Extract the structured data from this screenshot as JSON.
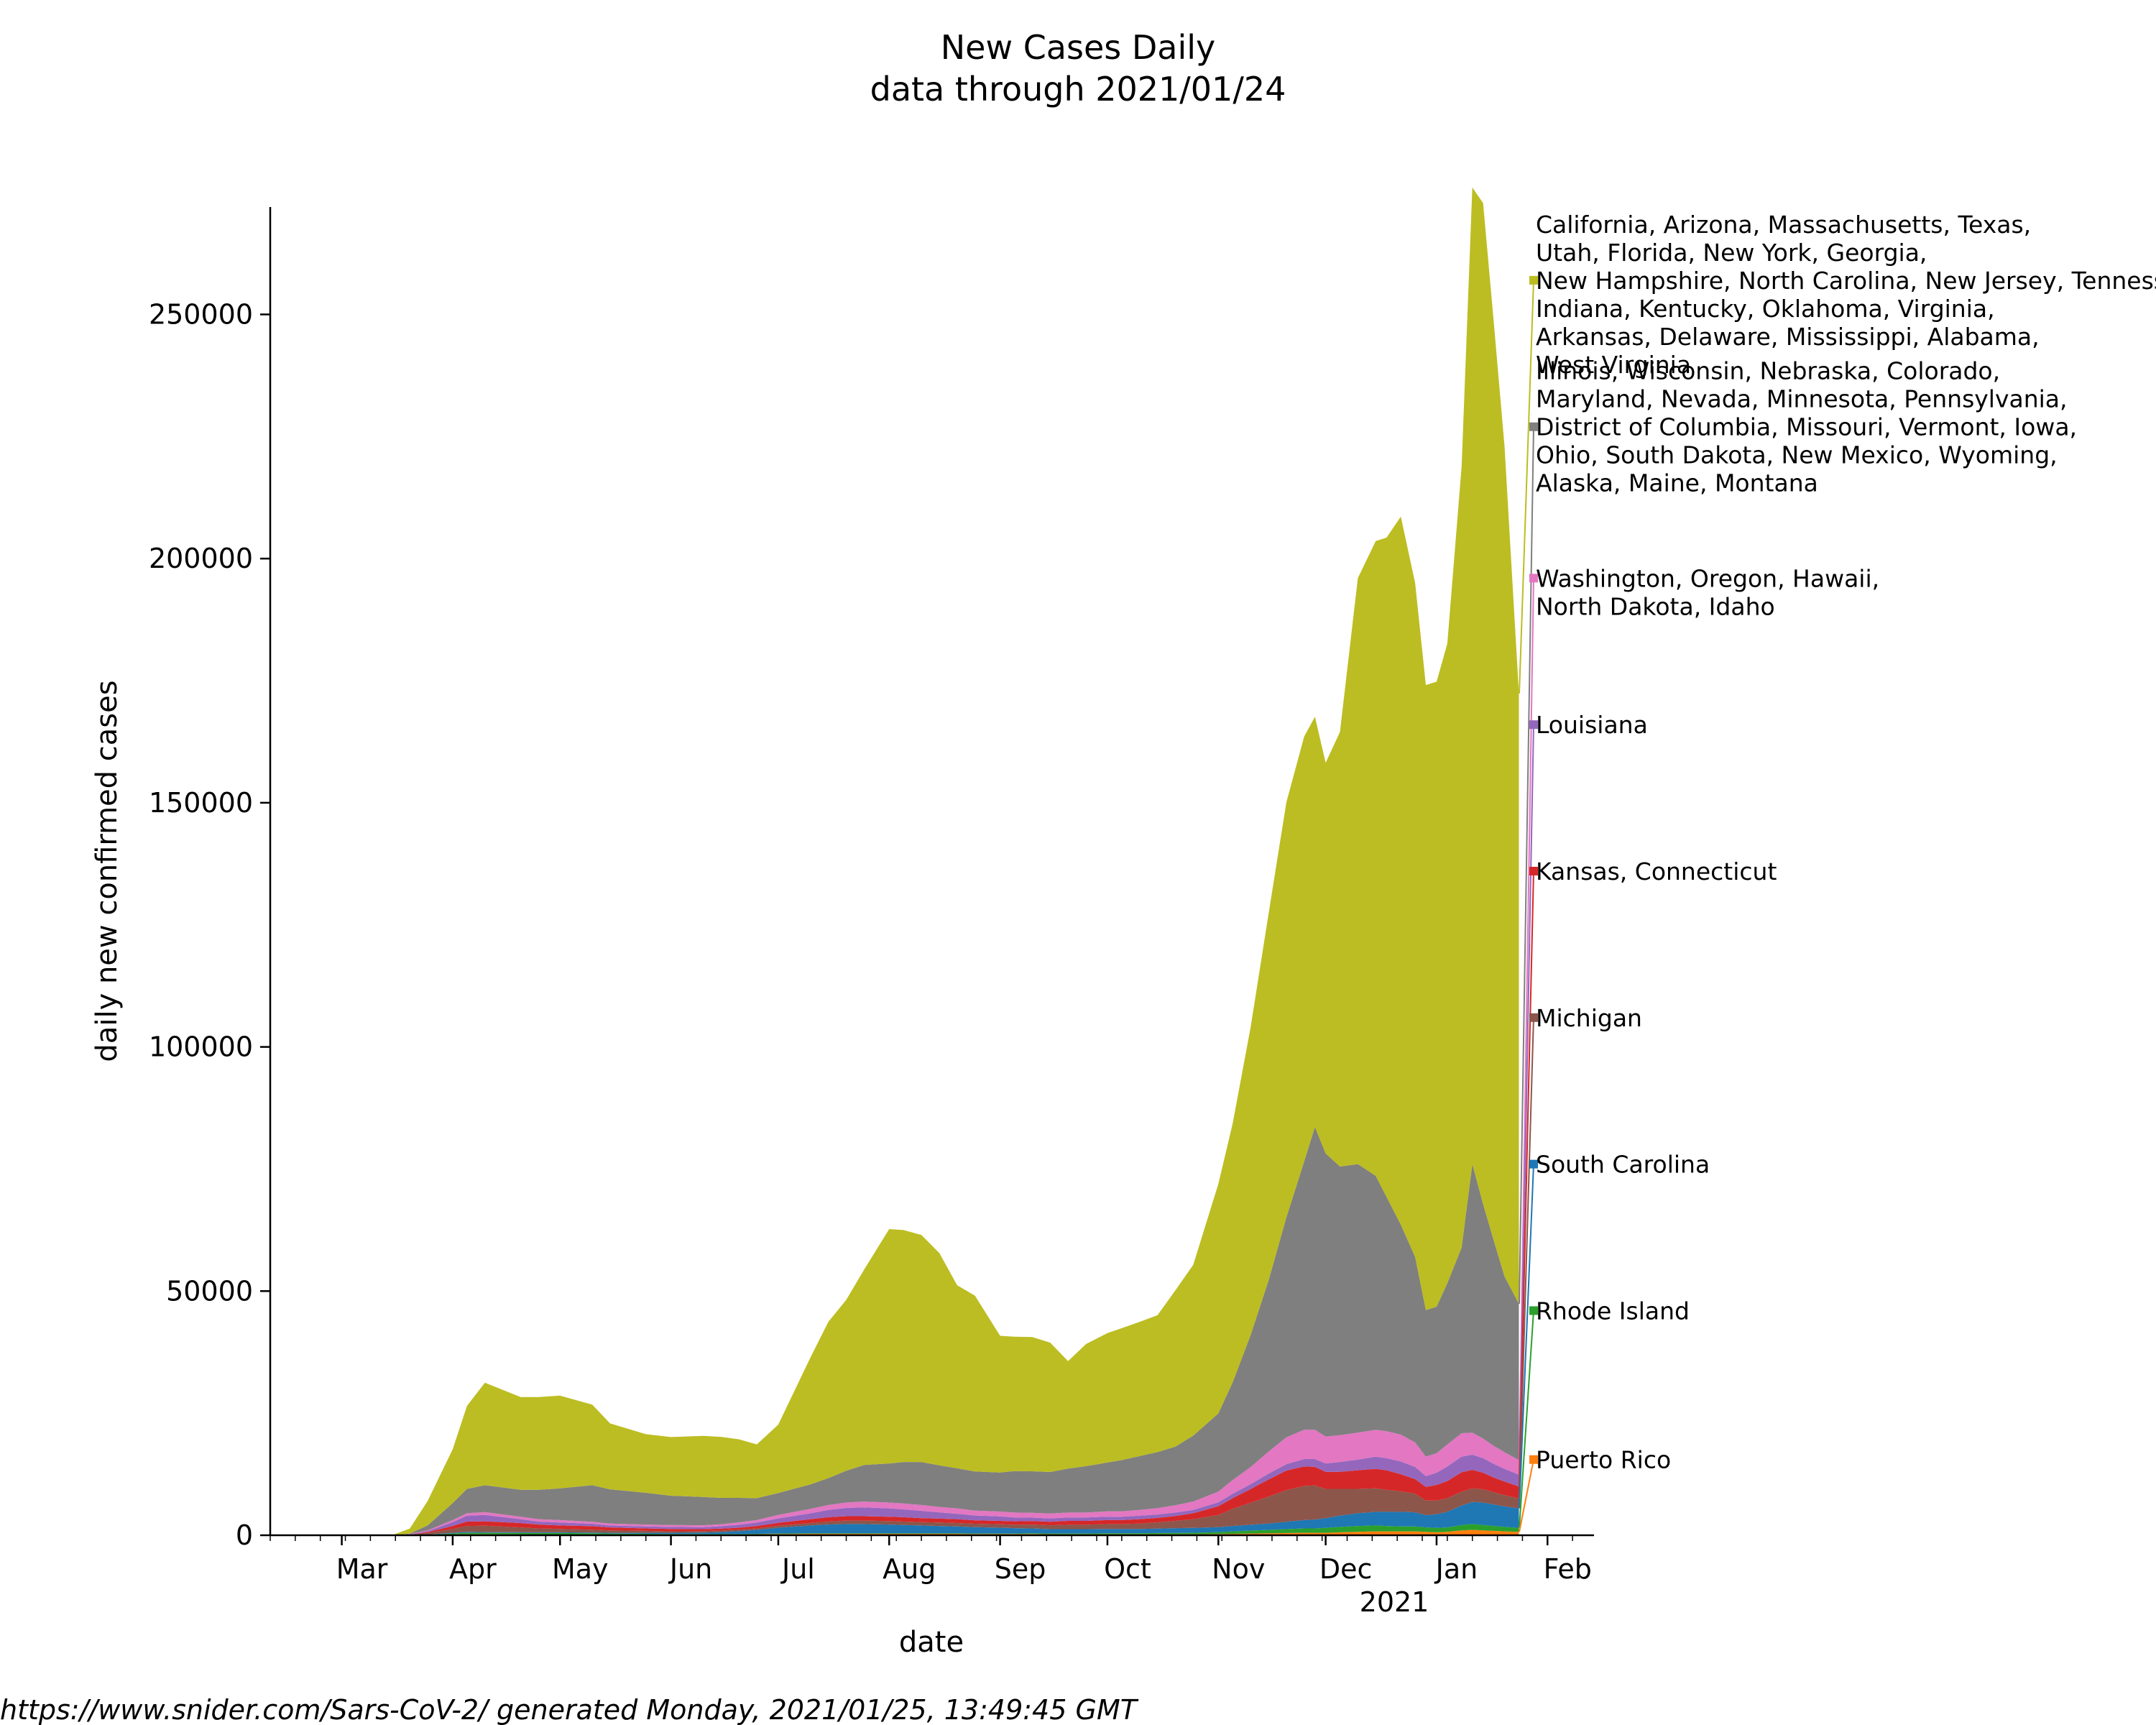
{
  "chart_data": {
    "type": "area",
    "stacked": true,
    "title": "New Cases Daily",
    "subtitle": "data through 2021/01/24",
    "xlabel": "date",
    "ylabel": "daily new confirmed cases",
    "ylim": [
      0,
      272000
    ],
    "xlim": [
      "2020-02-10",
      "2021-02-14"
    ],
    "grid": false,
    "legend_placement": "right",
    "x_ticks": [
      "Mar",
      "Apr",
      "May",
      "Jun",
      "Jul",
      "Aug",
      "Sep",
      "Oct",
      "Nov",
      "Dec",
      "Jan",
      "Feb"
    ],
    "x_tick_dates": [
      "2020-03-01",
      "2020-04-01",
      "2020-05-01",
      "2020-06-01",
      "2020-07-01",
      "2020-08-01",
      "2020-09-01",
      "2020-10-01",
      "2020-11-01",
      "2020-12-01",
      "2021-01-01",
      "2021-02-01"
    ],
    "x_tick_year": "2021",
    "y_ticks": [
      0,
      50000,
      100000,
      150000,
      200000,
      250000
    ],
    "x": [
      "2020-03-01",
      "2020-03-10",
      "2020-03-15",
      "2020-03-20",
      "2020-03-25",
      "2020-04-01",
      "2020-04-05",
      "2020-04-10",
      "2020-04-20",
      "2020-04-25",
      "2020-05-01",
      "2020-05-10",
      "2020-05-15",
      "2020-05-25",
      "2020-06-01",
      "2020-06-10",
      "2020-06-15",
      "2020-06-20",
      "2020-06-25",
      "2020-07-01",
      "2020-07-10",
      "2020-07-15",
      "2020-07-20",
      "2020-07-25",
      "2020-08-01",
      "2020-08-05",
      "2020-08-10",
      "2020-08-15",
      "2020-08-20",
      "2020-08-25",
      "2020-09-01",
      "2020-09-05",
      "2020-09-10",
      "2020-09-15",
      "2020-09-20",
      "2020-09-25",
      "2020-10-01",
      "2020-10-05",
      "2020-10-10",
      "2020-10-15",
      "2020-10-20",
      "2020-10-25",
      "2020-11-01",
      "2020-11-05",
      "2020-11-10",
      "2020-11-15",
      "2020-11-20",
      "2020-11-25",
      "2020-11-28",
      "2020-12-01",
      "2020-12-05",
      "2020-12-10",
      "2020-12-15",
      "2020-12-18",
      "2020-12-22",
      "2020-12-26",
      "2020-12-29",
      "2021-01-01",
      "2021-01-04",
      "2021-01-08",
      "2021-01-11",
      "2021-01-14",
      "2021-01-17",
      "2021-01-20",
      "2021-01-24"
    ],
    "series": [
      {
        "name": "Puerto Rico",
        "color": "#ff7f0e",
        "values": [
          0,
          0,
          0,
          0,
          50,
          150,
          200,
          200,
          150,
          150,
          150,
          150,
          150,
          150,
          150,
          150,
          150,
          150,
          200,
          250,
          300,
          300,
          300,
          300,
          300,
          300,
          300,
          300,
          300,
          250,
          250,
          250,
          250,
          200,
          200,
          200,
          200,
          200,
          200,
          200,
          200,
          200,
          250,
          300,
          350,
          400,
          450,
          500,
          500,
          500,
          600,
          700,
          800,
          800,
          800,
          800,
          700,
          600,
          700,
          1000,
          1100,
          1000,
          900,
          800,
          700
        ]
      },
      {
        "name": "Rhode Island",
        "color": "#2ca02c",
        "values": [
          0,
          0,
          0,
          0,
          50,
          200,
          300,
          300,
          300,
          300,
          300,
          250,
          200,
          150,
          100,
          100,
          100,
          100,
          100,
          100,
          100,
          100,
          100,
          100,
          100,
          100,
          100,
          100,
          100,
          100,
          100,
          100,
          150,
          150,
          150,
          150,
          200,
          200,
          200,
          250,
          250,
          300,
          400,
          500,
          600,
          700,
          800,
          900,
          900,
          1000,
          1100,
          1200,
          1200,
          1100,
          1000,
          1000,
          900,
          900,
          900,
          1100,
          1200,
          1100,
          1000,
          900,
          800
        ]
      },
      {
        "name": "South Carolina",
        "color": "#1f77b4",
        "values": [
          0,
          0,
          0,
          0,
          50,
          150,
          200,
          150,
          150,
          150,
          150,
          150,
          150,
          200,
          250,
          300,
          400,
          600,
          800,
          1200,
          1600,
          1800,
          1900,
          1900,
          1800,
          1700,
          1600,
          1500,
          1400,
          1300,
          1200,
          1100,
          1000,
          900,
          900,
          900,
          900,
          900,
          900,
          900,
          1000,
          1000,
          1000,
          1100,
          1200,
          1300,
          1500,
          1700,
          1800,
          2000,
          2300,
          2600,
          2800,
          2900,
          3000,
          2900,
          2500,
          2800,
          3200,
          4000,
          4500,
          4600,
          4400,
          4200,
          4000
        ]
      },
      {
        "name": "Michigan",
        "color": "#8c564b",
        "values": [
          0,
          0,
          0,
          100,
          300,
          800,
          1200,
          1300,
          1000,
          800,
          700,
          600,
          500,
          400,
          300,
          300,
          300,
          300,
          300,
          400,
          500,
          600,
          700,
          700,
          700,
          700,
          700,
          700,
          700,
          700,
          700,
          700,
          800,
          800,
          900,
          900,
          1000,
          1000,
          1100,
          1300,
          1500,
          1800,
          2500,
          3500,
          4500,
          5500,
          6500,
          7000,
          7000,
          6000,
          5500,
          5000,
          4800,
          4500,
          4200,
          3800,
          3000,
          2800,
          2800,
          2800,
          2800,
          2700,
          2500,
          2300,
          2000
        ]
      },
      {
        "name": "Kansas, Connecticut",
        "color": "#d62728",
        "values": [
          0,
          0,
          0,
          50,
          200,
          600,
          900,
          900,
          900,
          800,
          700,
          700,
          600,
          500,
          500,
          400,
          400,
          400,
          500,
          600,
          800,
          900,
          900,
          900,
          900,
          900,
          800,
          800,
          800,
          700,
          700,
          700,
          700,
          700,
          800,
          800,
          800,
          800,
          900,
          900,
          1000,
          1200,
          1800,
          2200,
          2800,
          3500,
          4000,
          4000,
          3800,
          3500,
          3500,
          3800,
          4000,
          4000,
          3500,
          3000,
          2800,
          3200,
          3500,
          4000,
          3800,
          3400,
          3000,
          2800,
          2500
        ]
      },
      {
        "name": "Louisiana",
        "color": "#9467bd",
        "values": [
          0,
          0,
          0,
          50,
          200,
          800,
          1200,
          1300,
          800,
          600,
          600,
          500,
          400,
          400,
          400,
          400,
          500,
          600,
          700,
          900,
          1200,
          1500,
          1700,
          1800,
          1700,
          1600,
          1500,
          1300,
          1100,
          1000,
          900,
          800,
          700,
          700,
          700,
          700,
          700,
          700,
          700,
          700,
          700,
          700,
          800,
          900,
          1000,
          1200,
          1300,
          1500,
          1600,
          1700,
          2000,
          2200,
          2500,
          2500,
          2600,
          2500,
          2200,
          2500,
          3000,
          3200,
          3100,
          3000,
          2800,
          2600,
          2400
        ]
      },
      {
        "name": "Washington, Oregon, Hawaii, North Dakota, Idaho",
        "color": "#e377c2",
        "values": [
          0,
          0,
          0,
          50,
          150,
          400,
          500,
          600,
          500,
          500,
          500,
          400,
          400,
          400,
          400,
          400,
          400,
          500,
          500,
          700,
          900,
          1000,
          1100,
          1200,
          1200,
          1200,
          1200,
          1100,
          1100,
          1000,
          1000,
          1000,
          1000,
          1000,
          1000,
          1000,
          1100,
          1100,
          1200,
          1300,
          1500,
          1700,
          2200,
          2800,
          3500,
          4500,
          5500,
          6000,
          6000,
          5500,
          5500,
          5500,
          5500,
          5500,
          5500,
          5000,
          4000,
          4000,
          4500,
          4800,
          4500,
          4000,
          3700,
          3400,
          3000
        ]
      },
      {
        "name": "Illinois, Wisconsin, Nebraska, Colorado, Maryland, Nevada, Minnesota, Pennsylvania, District of Columbia, Missouri, Vermont, Iowa, Ohio, South Dakota, New Mexico, Wyoming, Alaska, Maine, Montana",
        "color": "#7f7f7f",
        "values": [
          0,
          0,
          0,
          100,
          1000,
          3500,
          5000,
          5500,
          5500,
          6000,
          6500,
          7500,
          7000,
          6500,
          6000,
          5800,
          5400,
          5000,
          4500,
          4500,
          5000,
          5500,
          6500,
          7500,
          8000,
          8500,
          8800,
          8500,
          8200,
          8000,
          8000,
          8500,
          8500,
          8500,
          9000,
          9500,
          10000,
          10500,
          11000,
          11500,
          12000,
          13500,
          16000,
          20000,
          27000,
          35000,
          45000,
          55000,
          62000,
          58000,
          55000,
          55000,
          52000,
          48000,
          43000,
          38000,
          30000,
          30000,
          33000,
          38000,
          55000,
          48000,
          42000,
          36000,
          32000
        ]
      },
      {
        "name": "California, Arizona, Massachusetts, Texas, Utah, Florida, New York, Georgia, New Hampshire, North Carolina, New Jersey, Tennessee, Indiana, Kentucky, Oklahoma, Virginia, Arkansas, Delaware, Mississippi, Alabama, West Virginia",
        "color": "#bcbd22",
        "values": [
          0,
          0,
          0,
          1000,
          5000,
          11000,
          17000,
          21000,
          19000,
          19000,
          19000,
          16500,
          13500,
          12000,
          12000,
          12500,
          12500,
          12000,
          11000,
          14000,
          26000,
          32000,
          35000,
          40000,
          48000,
          47500,
          46500,
          43500,
          37500,
          36000,
          28000,
          27500,
          27500,
          26500,
          22000,
          25000,
          26500,
          27000,
          27500,
          28000,
          32000,
          35000,
          47000,
          53000,
          63000,
          75000,
          85000,
          87000,
          84000,
          80000,
          89000,
          120000,
          130000,
          135000,
          145000,
          138000,
          128000,
          128000,
          131000,
          160000,
          200000,
          205000,
          188000,
          170000,
          125000
        ]
      }
    ]
  },
  "footer": "https://www.snider.com/Sars-CoV-2/ generated Monday, 2021/01/25, 13:49:45 GMT",
  "legend": [
    {
      "color": "#bcbd22",
      "y": 257000,
      "lines": [
        "California, Arizona, Massachusetts, Texas,",
        "Utah, Florida, New York, Georgia,",
        "New Hampshire, North Carolina, New Jersey, Tennessee,",
        "Indiana, Kentucky, Oklahoma, Virginia,",
        "Arkansas, Delaware, Mississippi, Alabama,",
        "West Virginia"
      ]
    },
    {
      "color": "#7f7f7f",
      "y": 227000,
      "lines": [
        "Illinois, Wisconsin, Nebraska, Colorado,",
        "Maryland, Nevada, Minnesota, Pennsylvania,",
        "District of Columbia, Missouri, Vermont, Iowa,",
        "Ohio, South Dakota, New Mexico, Wyoming,",
        "Alaska, Maine, Montana"
      ]
    },
    {
      "color": "#e377c2",
      "y": 196000,
      "lines": [
        "Washington, Oregon, Hawaii,",
        "North Dakota, Idaho"
      ]
    },
    {
      "color": "#9467bd",
      "y": 166000,
      "lines": [
        "Louisiana"
      ]
    },
    {
      "color": "#d62728",
      "y": 136000,
      "lines": [
        "Kansas, Connecticut"
      ]
    },
    {
      "color": "#8c564b",
      "y": 106000,
      "lines": [
        "Michigan"
      ]
    },
    {
      "color": "#1f77b4",
      "y": 76000,
      "lines": [
        "South Carolina"
      ]
    },
    {
      "color": "#2ca02c",
      "y": 46000,
      "lines": [
        "Rhode Island"
      ]
    },
    {
      "color": "#ff7f0e",
      "y": 15500,
      "lines": [
        "Puerto Rico"
      ]
    }
  ]
}
